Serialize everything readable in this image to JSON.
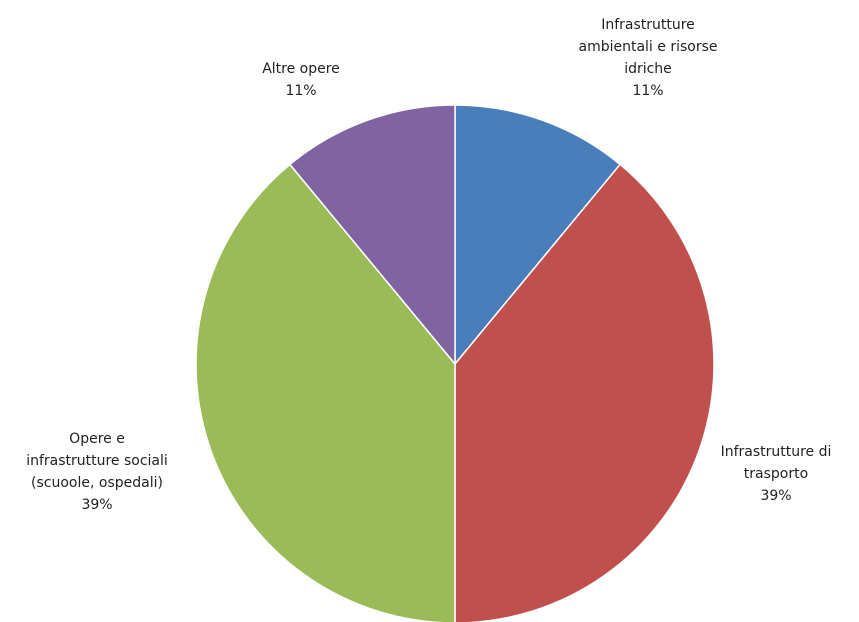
{
  "chart_data": {
    "type": "pie",
    "slices": [
      {
        "label_lines": [
          "Infrastrutture",
          "ambientali e risorse",
          "idriche"
        ],
        "value_label": "11%",
        "value": 11,
        "color": "#4a7ebb"
      },
      {
        "label_lines": [
          "Infrastrutture di",
          "trasporto"
        ],
        "value_label": "39%",
        "value": 39,
        "color": "#c0504d"
      },
      {
        "label_lines": [
          "Opere e",
          "infrastrutture sociali",
          "(scuoole, ospedali)"
        ],
        "value_label": "39%",
        "value": 39,
        "color": "#9bbb59"
      },
      {
        "label_lines": [
          "Altre opere"
        ],
        "value_label": "11%",
        "value": 11,
        "color": "#8064a2"
      }
    ],
    "start_angle_deg": 0,
    "direction": "clockwise",
    "legend": "none"
  }
}
